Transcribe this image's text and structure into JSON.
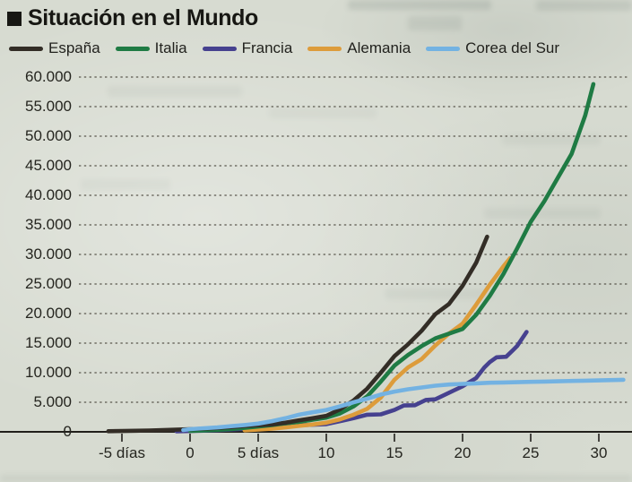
{
  "header": {
    "title": "Situación en el Mundo"
  },
  "chart_data": {
    "type": "line",
    "title": "Situación en el Mundo",
    "x_unit": "días (days since ~100th case)",
    "grid": "horizontal dashed",
    "legend_position": "top",
    "xlim": [
      -6.5,
      32.5
    ],
    "ylim": [
      0,
      60000
    ],
    "x_ticks": [
      {
        "value": -5,
        "label": "-5 días"
      },
      {
        "value": 0,
        "label": "0"
      },
      {
        "value": 5,
        "label": "5 días"
      },
      {
        "value": 10,
        "label": "10"
      },
      {
        "value": 15,
        "label": "15"
      },
      {
        "value": 20,
        "label": "20"
      },
      {
        "value": 25,
        "label": "25"
      },
      {
        "value": 30,
        "label": "30"
      }
    ],
    "y_ticks": [
      {
        "value": 0,
        "label": "0"
      },
      {
        "value": 5000,
        "label": "5.000"
      },
      {
        "value": 10000,
        "label": "10.000"
      },
      {
        "value": 15000,
        "label": "15.000"
      },
      {
        "value": 20000,
        "label": "20.000"
      },
      {
        "value": 25000,
        "label": "25.000"
      },
      {
        "value": 30000,
        "label": "30.000"
      },
      {
        "value": 35000,
        "label": "35.000"
      },
      {
        "value": 40000,
        "label": "40.000"
      },
      {
        "value": 45000,
        "label": "45.000"
      },
      {
        "value": 50000,
        "label": "50.000"
      },
      {
        "value": 55000,
        "label": "55.000"
      },
      {
        "value": 60000,
        "label": "60.000"
      }
    ],
    "series": [
      {
        "name": "España",
        "color": "#332d26",
        "points": [
          [
            -6,
            100
          ],
          [
            -5,
            140
          ],
          [
            -4,
            180
          ],
          [
            -3,
            230
          ],
          [
            -2,
            290
          ],
          [
            -1,
            360
          ],
          [
            0,
            440
          ],
          [
            1,
            530
          ],
          [
            2,
            650
          ],
          [
            3,
            800
          ],
          [
            4,
            980
          ],
          [
            5,
            1100
          ],
          [
            6,
            1250
          ],
          [
            7,
            1550
          ],
          [
            8,
            1950
          ],
          [
            9,
            2300
          ],
          [
            10,
            2700
          ],
          [
            11,
            3800
          ],
          [
            12,
            5300
          ],
          [
            13,
            7300
          ],
          [
            14,
            10000
          ],
          [
            15,
            12800
          ],
          [
            16,
            14800
          ],
          [
            17,
            17100
          ],
          [
            18,
            19900
          ],
          [
            19,
            21600
          ],
          [
            20,
            24700
          ],
          [
            21,
            28600
          ],
          [
            21.8,
            33000
          ]
        ]
      },
      {
        "name": "Italia",
        "color": "#1f7b44",
        "points": [
          [
            0,
            150
          ],
          [
            1,
            230
          ],
          [
            2,
            330
          ],
          [
            3,
            470
          ],
          [
            4,
            660
          ],
          [
            5,
            890
          ],
          [
            6,
            1130
          ],
          [
            7,
            1440
          ],
          [
            8,
            1700
          ],
          [
            9,
            2040
          ],
          [
            10,
            2400
          ],
          [
            11,
            3100
          ],
          [
            12,
            4300
          ],
          [
            13,
            6000
          ],
          [
            14,
            8500
          ],
          [
            15,
            11200
          ],
          [
            16,
            13000
          ],
          [
            17,
            14500
          ],
          [
            18,
            15800
          ],
          [
            19,
            16600
          ],
          [
            20,
            17400
          ],
          [
            21,
            19800
          ],
          [
            22,
            23000
          ],
          [
            23,
            26700
          ],
          [
            24,
            31000
          ],
          [
            25,
            35500
          ],
          [
            26,
            39000
          ],
          [
            27,
            43000
          ],
          [
            28,
            47000
          ],
          [
            29,
            53500
          ],
          [
            29.6,
            58800
          ]
        ]
      },
      {
        "name": "Francia",
        "color": "#46418f",
        "points": [
          [
            -1,
            90
          ],
          [
            0,
            130
          ],
          [
            1,
            190
          ],
          [
            2,
            280
          ],
          [
            3,
            380
          ],
          [
            4,
            500
          ],
          [
            5,
            650
          ],
          [
            6,
            780
          ],
          [
            7,
            950
          ],
          [
            8,
            1100
          ],
          [
            9,
            1200
          ],
          [
            10,
            1300
          ],
          [
            11,
            1800
          ],
          [
            12,
            2300
          ],
          [
            13,
            2900
          ],
          [
            14,
            2950
          ],
          [
            15,
            3700
          ],
          [
            15.7,
            4450
          ],
          [
            16.5,
            4500
          ],
          [
            17.3,
            5400
          ],
          [
            18,
            5500
          ],
          [
            19,
            6600
          ],
          [
            20,
            7700
          ],
          [
            21,
            9100
          ],
          [
            21.6,
            10900
          ],
          [
            22,
            11800
          ],
          [
            22.5,
            12600
          ],
          [
            23.2,
            12700
          ],
          [
            23.7,
            13800
          ],
          [
            24,
            14500
          ],
          [
            24.7,
            16900
          ]
        ]
      },
      {
        "name": "Alemania",
        "color": "#dd9c3b",
        "points": [
          [
            4,
            260
          ],
          [
            5,
            400
          ],
          [
            6,
            550
          ],
          [
            7,
            750
          ],
          [
            8,
            1000
          ],
          [
            9,
            1250
          ],
          [
            10,
            1550
          ],
          [
            11,
            2100
          ],
          [
            12,
            2900
          ],
          [
            13,
            3900
          ],
          [
            14,
            5800
          ],
          [
            15,
            8800
          ],
          [
            16,
            10900
          ],
          [
            17,
            12300
          ],
          [
            18,
            14600
          ],
          [
            19,
            16600
          ],
          [
            20,
            18300
          ],
          [
            21,
            21500
          ],
          [
            22,
            24900
          ],
          [
            23,
            28000
          ],
          [
            23.5,
            29400
          ]
        ]
      },
      {
        "name": "Corea del Sur",
        "color": "#73b2e2",
        "points": [
          [
            -0.5,
            300
          ],
          [
            0,
            450
          ],
          [
            1,
            600
          ],
          [
            2,
            750
          ],
          [
            3,
            950
          ],
          [
            4,
            1150
          ],
          [
            5,
            1400
          ],
          [
            6,
            1800
          ],
          [
            7,
            2300
          ],
          [
            8,
            2900
          ],
          [
            9,
            3300
          ],
          [
            10,
            3700
          ],
          [
            11,
            4300
          ],
          [
            12,
            5000
          ],
          [
            13,
            5600
          ],
          [
            14,
            6300
          ],
          [
            15,
            6800
          ],
          [
            16,
            7200
          ],
          [
            17,
            7500
          ],
          [
            18,
            7800
          ],
          [
            19,
            8000
          ],
          [
            20,
            8100
          ],
          [
            21,
            8200
          ],
          [
            22,
            8300
          ],
          [
            23,
            8350
          ],
          [
            24,
            8400
          ],
          [
            25,
            8450
          ],
          [
            26,
            8500
          ],
          [
            27,
            8550
          ],
          [
            28,
            8600
          ],
          [
            29,
            8650
          ],
          [
            30,
            8700
          ],
          [
            31.8,
            8800
          ]
        ]
      }
    ]
  }
}
